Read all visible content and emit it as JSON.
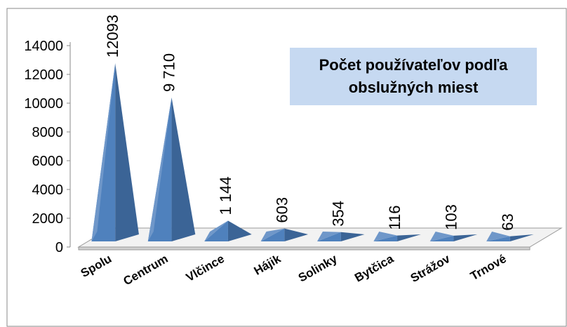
{
  "chart_data": {
    "type": "bar",
    "title": "Počet používateľov podľa obslužných miest",
    "categories": [
      "Spolu",
      "Centrum",
      "Vlčince",
      "Hájik",
      "Solinky",
      "Bytčica",
      "Strážov",
      "Trnové"
    ],
    "values": [
      12093,
      9710,
      1144,
      603,
      354,
      116,
      103,
      63
    ],
    "value_labels": [
      "12093",
      "9 710",
      "1 144",
      "603",
      "354",
      "116",
      "103",
      "63"
    ],
    "color": "#4f81bd",
    "ylim": [
      0,
      14000
    ],
    "yticks": [
      0,
      2000,
      4000,
      6000,
      8000,
      10000,
      12000,
      14000
    ]
  }
}
